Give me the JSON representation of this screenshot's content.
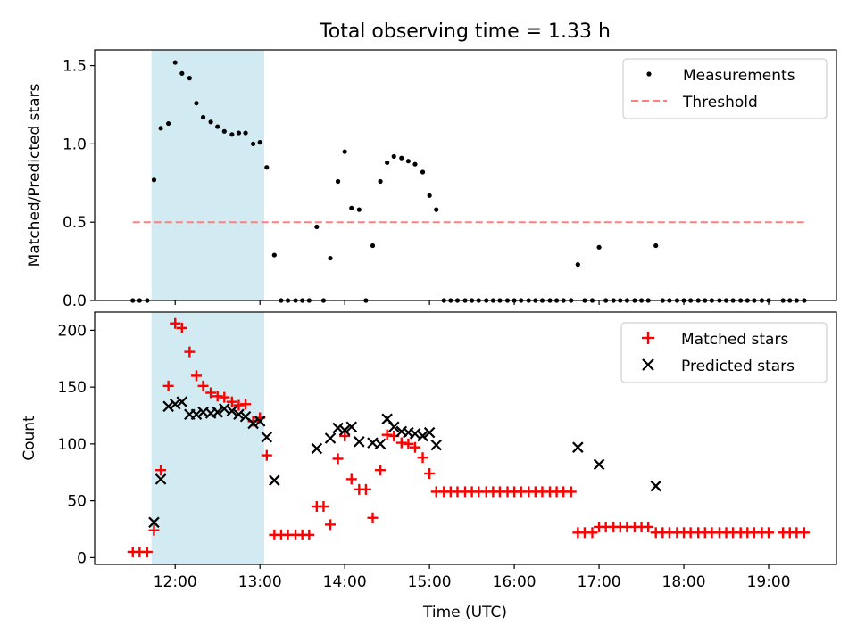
{
  "figure": {
    "title": "Total observing time = 1.33 h",
    "xlabel": "Time (UTC)",
    "xticks": [
      "12:00",
      "13:00",
      "14:00",
      "15:00",
      "16:00",
      "17:00",
      "18:00",
      "19:00"
    ],
    "colors": {
      "shade": "#add8e6",
      "matched": "#ff0000",
      "predicted": "#000000",
      "threshold": "#ff7f7f",
      "measurement": "#000000"
    }
  },
  "chart_data": [
    {
      "type": "scatter",
      "ylabel": "Matched/Predicted stars",
      "ylim": [
        0,
        1.6
      ],
      "yticks": [
        "0.0",
        "0.5",
        "1.0",
        "1.5"
      ],
      "xlim_hours": [
        11.05,
        19.8
      ],
      "shaded_span": [
        11.72,
        13.05
      ],
      "legend": {
        "position": "top-right",
        "entries": [
          "Measurements",
          "Threshold"
        ]
      },
      "threshold": {
        "name": "Threshold",
        "y": 0.5,
        "x_range": [
          11.5,
          19.42
        ]
      },
      "series": [
        {
          "name": "Measurements",
          "points": [
            [
              11.5,
              0
            ],
            [
              11.58,
              0
            ],
            [
              11.67,
              0
            ],
            [
              11.75,
              0.77
            ],
            [
              11.83,
              1.1
            ],
            [
              11.92,
              1.13
            ],
            [
              12.0,
              1.52
            ],
            [
              12.08,
              1.45
            ],
            [
              12.17,
              1.42
            ],
            [
              12.25,
              1.26
            ],
            [
              12.33,
              1.17
            ],
            [
              12.42,
              1.14
            ],
            [
              12.5,
              1.11
            ],
            [
              12.58,
              1.08
            ],
            [
              12.67,
              1.06
            ],
            [
              12.75,
              1.07
            ],
            [
              12.83,
              1.07
            ],
            [
              12.92,
              1.0
            ],
            [
              13.0,
              1.01
            ],
            [
              13.08,
              0.85
            ],
            [
              13.17,
              0.29
            ],
            [
              13.25,
              0
            ],
            [
              13.33,
              0
            ],
            [
              13.42,
              0
            ],
            [
              13.5,
              0
            ],
            [
              13.58,
              0
            ],
            [
              13.67,
              0.47
            ],
            [
              13.75,
              0
            ],
            [
              13.83,
              0.27
            ],
            [
              13.92,
              0.76
            ],
            [
              14.0,
              0.95
            ],
            [
              14.08,
              0.59
            ],
            [
              14.17,
              0.58
            ],
            [
              14.25,
              0
            ],
            [
              14.33,
              0.35
            ],
            [
              14.42,
              0.76
            ],
            [
              14.5,
              0.88
            ],
            [
              14.58,
              0.92
            ],
            [
              14.67,
              0.91
            ],
            [
              14.75,
              0.89
            ],
            [
              14.83,
              0.87
            ],
            [
              14.92,
              0.82
            ],
            [
              15.0,
              0.67
            ],
            [
              15.08,
              0.58
            ],
            [
              15.17,
              0
            ],
            [
              15.25,
              0
            ],
            [
              15.33,
              0
            ],
            [
              15.42,
              0
            ],
            [
              15.5,
              0
            ],
            [
              15.58,
              0
            ],
            [
              15.67,
              0
            ],
            [
              15.75,
              0
            ],
            [
              15.83,
              0
            ],
            [
              15.92,
              0
            ],
            [
              16.0,
              0
            ],
            [
              16.08,
              0
            ],
            [
              16.17,
              0
            ],
            [
              16.25,
              0
            ],
            [
              16.33,
              0
            ],
            [
              16.42,
              0
            ],
            [
              16.5,
              0
            ],
            [
              16.58,
              0
            ],
            [
              16.67,
              0
            ],
            [
              16.75,
              0.23
            ],
            [
              16.83,
              0
            ],
            [
              16.92,
              0
            ],
            [
              17.0,
              0.34
            ],
            [
              17.08,
              0
            ],
            [
              17.17,
              0
            ],
            [
              17.25,
              0
            ],
            [
              17.33,
              0
            ],
            [
              17.42,
              0
            ],
            [
              17.5,
              0
            ],
            [
              17.58,
              0
            ],
            [
              17.67,
              0.35
            ],
            [
              17.75,
              0
            ],
            [
              17.83,
              0
            ],
            [
              17.92,
              0
            ],
            [
              18.0,
              0
            ],
            [
              18.08,
              0
            ],
            [
              18.17,
              0
            ],
            [
              18.25,
              0
            ],
            [
              18.33,
              0
            ],
            [
              18.42,
              0
            ],
            [
              18.5,
              0
            ],
            [
              18.58,
              0
            ],
            [
              18.67,
              0
            ],
            [
              18.75,
              0
            ],
            [
              18.83,
              0
            ],
            [
              18.92,
              0
            ],
            [
              19.0,
              0
            ],
            [
              19.17,
              0
            ],
            [
              19.25,
              0
            ],
            [
              19.33,
              0
            ],
            [
              19.42,
              0
            ]
          ]
        }
      ]
    },
    {
      "type": "scatter",
      "ylabel": "Count",
      "ylim": [
        -6,
        216
      ],
      "yticks": [
        "0",
        "50",
        "100",
        "150",
        "200"
      ],
      "xlim_hours": [
        11.05,
        19.8
      ],
      "shaded_span": [
        11.72,
        13.05
      ],
      "legend": {
        "position": "top-right",
        "entries": [
          "Matched stars",
          "Predicted stars"
        ]
      },
      "series": [
        {
          "name": "Matched stars",
          "points": [
            [
              11.5,
              5
            ],
            [
              11.58,
              5
            ],
            [
              11.67,
              5
            ],
            [
              11.75,
              24
            ],
            [
              11.83,
              77
            ],
            [
              11.92,
              151
            ],
            [
              12.0,
              206
            ],
            [
              12.08,
              202
            ],
            [
              12.17,
              181
            ],
            [
              12.25,
              160
            ],
            [
              12.33,
              151
            ],
            [
              12.42,
              145
            ],
            [
              12.5,
              142
            ],
            [
              12.58,
              141
            ],
            [
              12.67,
              137
            ],
            [
              12.75,
              134
            ],
            [
              12.83,
              135
            ],
            [
              12.92,
              120
            ],
            [
              13.0,
              123
            ],
            [
              13.08,
              90
            ],
            [
              13.17,
              20
            ],
            [
              13.25,
              20
            ],
            [
              13.33,
              20
            ],
            [
              13.42,
              20
            ],
            [
              13.5,
              20
            ],
            [
              13.58,
              20
            ],
            [
              13.67,
              45
            ],
            [
              13.75,
              45
            ],
            [
              13.83,
              29
            ],
            [
              13.92,
              87
            ],
            [
              14.0,
              107
            ],
            [
              14.08,
              69
            ],
            [
              14.17,
              60
            ],
            [
              14.25,
              60
            ],
            [
              14.33,
              35
            ],
            [
              14.42,
              77
            ],
            [
              14.5,
              108
            ],
            [
              14.58,
              107
            ],
            [
              14.67,
              101
            ],
            [
              14.75,
              100
            ],
            [
              14.83,
              97
            ],
            [
              14.92,
              88
            ],
            [
              15.0,
              74
            ],
            [
              15.08,
              58
            ],
            [
              15.17,
              58
            ],
            [
              15.25,
              58
            ],
            [
              15.33,
              58
            ],
            [
              15.42,
              58
            ],
            [
              15.5,
              58
            ],
            [
              15.58,
              58
            ],
            [
              15.67,
              58
            ],
            [
              15.75,
              58
            ],
            [
              15.83,
              58
            ],
            [
              15.92,
              58
            ],
            [
              16.0,
              58
            ],
            [
              16.08,
              58
            ],
            [
              16.17,
              58
            ],
            [
              16.25,
              58
            ],
            [
              16.33,
              58
            ],
            [
              16.42,
              58
            ],
            [
              16.5,
              58
            ],
            [
              16.58,
              58
            ],
            [
              16.67,
              58
            ],
            [
              16.75,
              22
            ],
            [
              16.83,
              22
            ],
            [
              16.92,
              22
            ],
            [
              17.0,
              27
            ],
            [
              17.08,
              27
            ],
            [
              17.17,
              27
            ],
            [
              17.25,
              27
            ],
            [
              17.33,
              27
            ],
            [
              17.42,
              27
            ],
            [
              17.5,
              27
            ],
            [
              17.58,
              27
            ],
            [
              17.67,
              22
            ],
            [
              17.75,
              22
            ],
            [
              17.83,
              22
            ],
            [
              17.92,
              22
            ],
            [
              18.0,
              22
            ],
            [
              18.08,
              22
            ],
            [
              18.17,
              22
            ],
            [
              18.25,
              22
            ],
            [
              18.33,
              22
            ],
            [
              18.42,
              22
            ],
            [
              18.5,
              22
            ],
            [
              18.58,
              22
            ],
            [
              18.67,
              22
            ],
            [
              18.75,
              22
            ],
            [
              18.83,
              22
            ],
            [
              18.92,
              22
            ],
            [
              19.0,
              22
            ],
            [
              19.17,
              22
            ],
            [
              19.25,
              22
            ],
            [
              19.33,
              22
            ],
            [
              19.42,
              22
            ]
          ]
        },
        {
          "name": "Predicted stars",
          "points": [
            [
              11.75,
              31
            ],
            [
              11.83,
              69
            ],
            [
              11.92,
              133
            ],
            [
              12.0,
              135
            ],
            [
              12.08,
              137
            ],
            [
              12.17,
              126
            ],
            [
              12.25,
              126
            ],
            [
              12.33,
              128
            ],
            [
              12.42,
              127
            ],
            [
              12.5,
              128
            ],
            [
              12.58,
              131
            ],
            [
              12.67,
              129
            ],
            [
              12.75,
              126
            ],
            [
              12.83,
              124
            ],
            [
              12.92,
              118
            ],
            [
              13.0,
              120
            ],
            [
              13.08,
              106
            ],
            [
              13.17,
              68
            ],
            [
              13.67,
              96
            ],
            [
              13.83,
              105
            ],
            [
              13.92,
              114
            ],
            [
              14.0,
              112
            ],
            [
              14.08,
              115
            ],
            [
              14.17,
              102
            ],
            [
              14.33,
              101
            ],
            [
              14.42,
              100
            ],
            [
              14.5,
              122
            ],
            [
              14.58,
              115
            ],
            [
              14.67,
              111
            ],
            [
              14.75,
              110
            ],
            [
              14.83,
              109
            ],
            [
              14.92,
              107
            ],
            [
              15.0,
              110
            ],
            [
              15.08,
              99
            ],
            [
              16.75,
              97
            ],
            [
              17.0,
              82
            ],
            [
              17.67,
              63
            ]
          ]
        }
      ]
    }
  ]
}
